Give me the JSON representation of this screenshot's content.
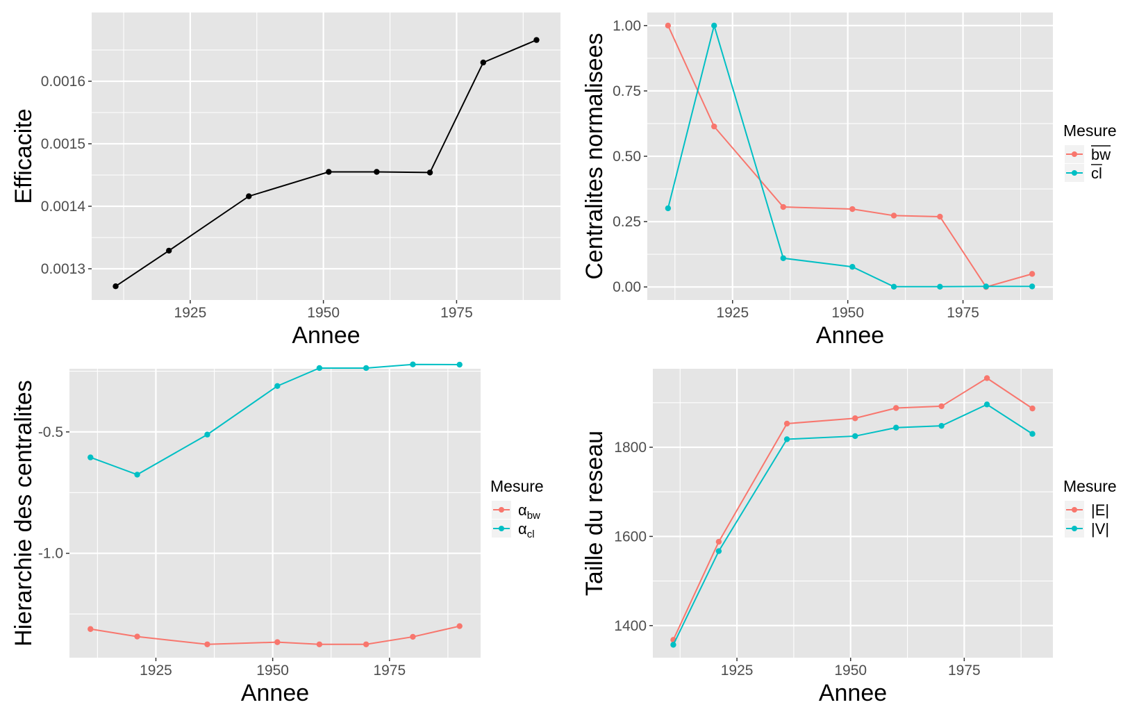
{
  "colors": {
    "panel_bg": "#e5e5e5",
    "grid": "#ffffff",
    "series_red": "#f8766d",
    "series_teal": "#00bfc4",
    "series_black": "#000000"
  },
  "chart_data": [
    {
      "id": "efficacite",
      "type": "line",
      "xlabel": "Annee",
      "ylabel": "Efficacite",
      "xlim": [
        1906.5,
        1994.5
      ],
      "ylim": [
        0.00125,
        0.00171
      ],
      "x_ticks": [
        1925,
        1950,
        1975
      ],
      "x_tick_labels": [
        "1925",
        "1950",
        "1975"
      ],
      "y_ticks": [
        0.0013,
        0.0014,
        0.0015,
        0.0016
      ],
      "y_tick_labels": [
        "0.0013",
        "0.0014",
        "0.0015",
        "0.0016"
      ],
      "grid": true,
      "legend": null,
      "series": [
        {
          "color": "#000000",
          "x": [
            1911,
            1921,
            1936,
            1951,
            1960,
            1970,
            1980,
            1990
          ],
          "y": [
            0.001272,
            0.001329,
            0.001416,
            0.001455,
            0.001455,
            0.001454,
            0.00163,
            0.001666
          ]
        }
      ]
    },
    {
      "id": "centralites",
      "type": "line",
      "xlabel": "Annee",
      "ylabel": "Centralites normalisees",
      "xlim": [
        1906.5,
        1994.5
      ],
      "ylim": [
        -0.05,
        1.05
      ],
      "x_ticks": [
        1925,
        1950,
        1975
      ],
      "x_tick_labels": [
        "1925",
        "1950",
        "1975"
      ],
      "y_ticks": [
        0,
        0.25,
        0.5,
        0.75,
        1.0
      ],
      "y_tick_labels": [
        "0.00",
        "0.25",
        "0.50",
        "0.75",
        "1.00"
      ],
      "grid": true,
      "legend": {
        "title": "Mesure",
        "position": "right",
        "items": [
          {
            "label": "bw",
            "overline": true,
            "color": "#f8766d"
          },
          {
            "label": "cl",
            "overline": true,
            "color": "#00bfc4"
          }
        ]
      },
      "series": [
        {
          "name": "bw",
          "color": "#f8766d",
          "x": [
            1911,
            1921,
            1936,
            1951,
            1960,
            1970,
            1980,
            1990
          ],
          "y": [
            1.0,
            0.614,
            0.306,
            0.298,
            0.273,
            0.269,
            0.0,
            0.05
          ]
        },
        {
          "name": "cl",
          "color": "#00bfc4",
          "x": [
            1911,
            1921,
            1936,
            1951,
            1960,
            1970,
            1980,
            1990
          ],
          "y": [
            0.301,
            1.0,
            0.11,
            0.077,
            0.001,
            0.001,
            0.002,
            0.002
          ]
        }
      ]
    },
    {
      "id": "hierarchie",
      "type": "line",
      "xlabel": "Annee",
      "ylabel": "Hierarchie des centralites",
      "xlim": [
        1906.5,
        1994.5
      ],
      "ylim": [
        -1.43,
        -0.24
      ],
      "x_ticks": [
        1925,
        1950,
        1975
      ],
      "x_tick_labels": [
        "1925",
        "1950",
        "1975"
      ],
      "y_ticks": [
        -1.0,
        -0.5
      ],
      "y_tick_labels": [
        "-1.0",
        "-0.5"
      ],
      "grid": true,
      "legend": {
        "title": "Mesure",
        "position": "right",
        "items": [
          {
            "label": "α",
            "sub": "bw",
            "color": "#f8766d"
          },
          {
            "label": "α",
            "sub": "cl",
            "color": "#00bfc4"
          }
        ]
      },
      "series": [
        {
          "name": "αbw",
          "color": "#f8766d",
          "x": [
            1911,
            1921,
            1936,
            1951,
            1960,
            1970,
            1980,
            1990
          ],
          "y": [
            -1.312,
            -1.343,
            -1.375,
            -1.366,
            -1.375,
            -1.375,
            -1.344,
            -1.3
          ]
        },
        {
          "name": "αcl",
          "color": "#00bfc4",
          "x": [
            1911,
            1921,
            1936,
            1951,
            1960,
            1970,
            1980,
            1990
          ],
          "y": [
            -0.605,
            -0.676,
            -0.511,
            -0.311,
            -0.237,
            -0.237,
            -0.222,
            -0.223
          ]
        }
      ]
    },
    {
      "id": "taille",
      "type": "line",
      "xlabel": "Annee",
      "ylabel": "Taille du reseau",
      "xlim": [
        1906.5,
        1994.5
      ],
      "ylim": [
        1328,
        1976
      ],
      "x_ticks": [
        1925,
        1950,
        1975
      ],
      "x_tick_labels": [
        "1925",
        "1950",
        "1975"
      ],
      "y_ticks": [
        1400,
        1600,
        1800
      ],
      "y_tick_labels": [
        "1400",
        "1600",
        "1800"
      ],
      "grid": true,
      "legend": {
        "title": "Mesure",
        "position": "right",
        "items": [
          {
            "label": "|E|",
            "color": "#f8766d"
          },
          {
            "label": "|V|",
            "color": "#00bfc4"
          }
        ]
      },
      "series": [
        {
          "name": "|E|",
          "color": "#f8766d",
          "x": [
            1911,
            1921,
            1936,
            1951,
            1960,
            1970,
            1980,
            1990
          ],
          "y": [
            1368,
            1588,
            1853,
            1865,
            1888,
            1892,
            1955,
            1887
          ]
        },
        {
          "name": "|V|",
          "color": "#00bfc4",
          "x": [
            1911,
            1921,
            1936,
            1951,
            1960,
            1970,
            1980,
            1990
          ],
          "y": [
            1357,
            1567,
            1818,
            1825,
            1844,
            1848,
            1896,
            1830
          ]
        }
      ]
    }
  ]
}
